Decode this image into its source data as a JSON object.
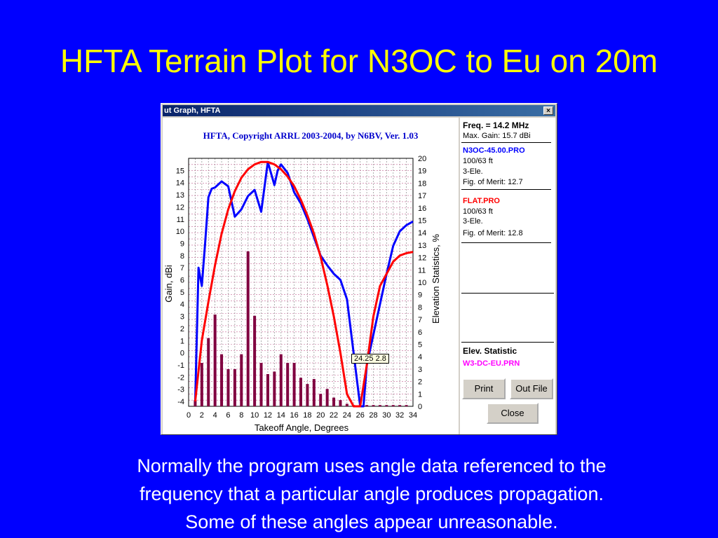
{
  "slide": {
    "title": "HFTA Terrain Plot for N3OC to Eu on 20m",
    "caption": [
      "Normally the program uses angle data referenced to the",
      "frequency that a particular angle produces propagation.",
      "Some of these angles appear unreasonable."
    ]
  },
  "window": {
    "title": "ut Graph, HFTA",
    "close_glyph": "×"
  },
  "sidebar": {
    "freq": "Freq. = 14.2 MHz",
    "max_gain": "Max. Gain: 15.7 dBi",
    "file1": {
      "name": "N3OC-45.00.PRO",
      "height": "100/63 ft",
      "antenna": "3-Ele.",
      "merit": "Fig. of Merit:  12.7",
      "color": "#0000ff"
    },
    "file2": {
      "name": "FLAT.PRO",
      "height": "100/63 ft",
      "antenna": "3-Ele.",
      "merit": "Fig. of Merit:  12.8",
      "color": "#ff0000"
    },
    "elev_label": "Elev. Statistic",
    "elev_file": "W3-DC-EU.PRN",
    "elev_color": "#ff00ff",
    "print_label": "Print",
    "outfile_label": "Out File",
    "close_label": "Close"
  },
  "chart_data": {
    "type": "line",
    "title": "HFTA, Copyright ARRL 2003-2004, by N6BV, Ver. 1.03",
    "xlabel": "Takeoff Angle, Degrees",
    "ylabel": "Gain, dBi",
    "y2label": "Elevation Statistics, %",
    "xlim": [
      0,
      34
    ],
    "ylim": [
      -4.4,
      16
    ],
    "y2lim": [
      0,
      20
    ],
    "x_ticks": [
      0,
      2,
      4,
      6,
      8,
      10,
      12,
      14,
      16,
      18,
      20,
      22,
      24,
      26,
      28,
      30,
      32,
      34
    ],
    "y_ticks": [
      -4,
      -3,
      -2,
      -1,
      0,
      1,
      2,
      3,
      4,
      5,
      6,
      7,
      8,
      9,
      10,
      11,
      12,
      13,
      14,
      15
    ],
    "y2_ticks": [
      0,
      1,
      2,
      3,
      4,
      5,
      6,
      7,
      8,
      9,
      10,
      11,
      12,
      13,
      14,
      15,
      16,
      17,
      18,
      19,
      20
    ],
    "tooltip": "24.25 2.8",
    "series": [
      {
        "name": "N3OC-45.00.PRO",
        "color": "#0000ff",
        "x": [
          1,
          1.5,
          2,
          2.5,
          3,
          3.5,
          4,
          5,
          6,
          7,
          7.5,
          8,
          9,
          10,
          11,
          12,
          13,
          13.5,
          14,
          15,
          16,
          17,
          18,
          19,
          20,
          21,
          22,
          23,
          24,
          25,
          26,
          26.5,
          27,
          28,
          29,
          30,
          31,
          32,
          33,
          34
        ],
        "y": [
          -4,
          7,
          5.5,
          9,
          12.8,
          13.5,
          13.6,
          14.1,
          13.7,
          11.2,
          11.5,
          11.8,
          12.9,
          13.4,
          11.6,
          15.7,
          13.8,
          15,
          15.5,
          14.8,
          13.2,
          12.3,
          11,
          9.5,
          8,
          7.2,
          6.5,
          6,
          4.4,
          0,
          -4.4,
          -4.4,
          -1,
          1.5,
          4,
          6.5,
          8.8,
          10,
          10.5,
          10.8
        ]
      },
      {
        "name": "FLAT.PRO",
        "color": "#ff0000",
        "x": [
          1,
          2,
          3,
          4,
          5,
          6,
          7,
          8,
          9,
          10,
          11,
          12,
          13,
          14,
          15,
          16,
          17,
          18,
          19,
          20,
          21,
          22,
          23,
          24,
          25,
          26,
          27,
          28,
          29,
          30,
          31,
          32,
          33,
          34
        ],
        "y": [
          -4,
          1,
          4.2,
          7.2,
          9.8,
          11.8,
          13.3,
          14.4,
          15.1,
          15.5,
          15.7,
          15.7,
          15.5,
          15.1,
          14.5,
          13.7,
          12.6,
          11.3,
          9.8,
          7.9,
          5.6,
          3,
          0,
          -3.4,
          -4.4,
          -4.4,
          -1,
          3,
          5.5,
          6.5,
          7.5,
          8,
          8.2,
          8.3
        ]
      },
      {
        "name": "W3-DC-EU.PRN",
        "type": "bar",
        "color": "#800040",
        "x": [
          1,
          2,
          3,
          4,
          5,
          6,
          7,
          8,
          9,
          10,
          11,
          12,
          13,
          14,
          15,
          16,
          17,
          18,
          19,
          20,
          21,
          22,
          23,
          24,
          25,
          26,
          27,
          28,
          29,
          30,
          31,
          32,
          33
        ],
        "y": [
          0.5,
          3.5,
          5.5,
          7.4,
          4.2,
          3,
          3,
          4.2,
          12.5,
          7.3,
          3.5,
          2.6,
          2.8,
          4.2,
          3.5,
          3.5,
          2.3,
          1.8,
          2.2,
          1,
          1.4,
          0.7,
          0.5,
          0.2,
          0.1,
          0.1,
          0.1,
          0.1,
          0.1,
          0.1,
          0.1,
          0.1,
          0.1
        ]
      }
    ]
  }
}
